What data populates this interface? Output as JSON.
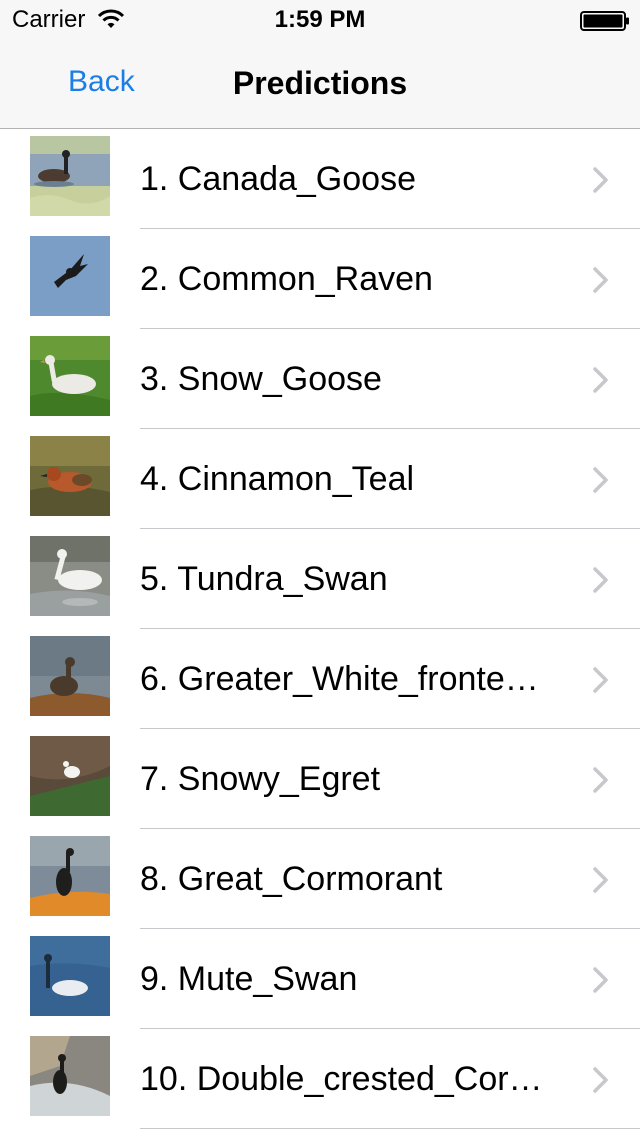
{
  "status_bar": {
    "carrier": "Carrier",
    "time": "1:59 PM",
    "wifi_icon": "wifi-icon",
    "battery_icon": "battery-icon"
  },
  "nav": {
    "back_label": "Back",
    "title": "Predictions",
    "accent_color": "#1a7ee6"
  },
  "predictions": [
    {
      "label": "1. Canada_Goose",
      "thumbnail": "canada-goose-photo"
    },
    {
      "label": "2. Common_Raven",
      "thumbnail": "common-raven-photo"
    },
    {
      "label": "3. Snow_Goose",
      "thumbnail": "snow-goose-photo"
    },
    {
      "label": "4. Cinnamon_Teal",
      "thumbnail": "cinnamon-teal-photo"
    },
    {
      "label": "5. Tundra_Swan",
      "thumbnail": "tundra-swan-photo"
    },
    {
      "label": "6. Greater_White_fronte…",
      "thumbnail": "greater-white-fronted-goose-photo"
    },
    {
      "label": "7. Snowy_Egret",
      "thumbnail": "snowy-egret-photo"
    },
    {
      "label": "8. Great_Cormorant",
      "thumbnail": "great-cormorant-photo"
    },
    {
      "label": "9. Mute_Swan",
      "thumbnail": "mute-swan-photo"
    },
    {
      "label": "10. Double_crested_Cor…",
      "thumbnail": "double-crested-cormorant-photo"
    }
  ],
  "row_chevron_icon": "chevron-right-icon"
}
